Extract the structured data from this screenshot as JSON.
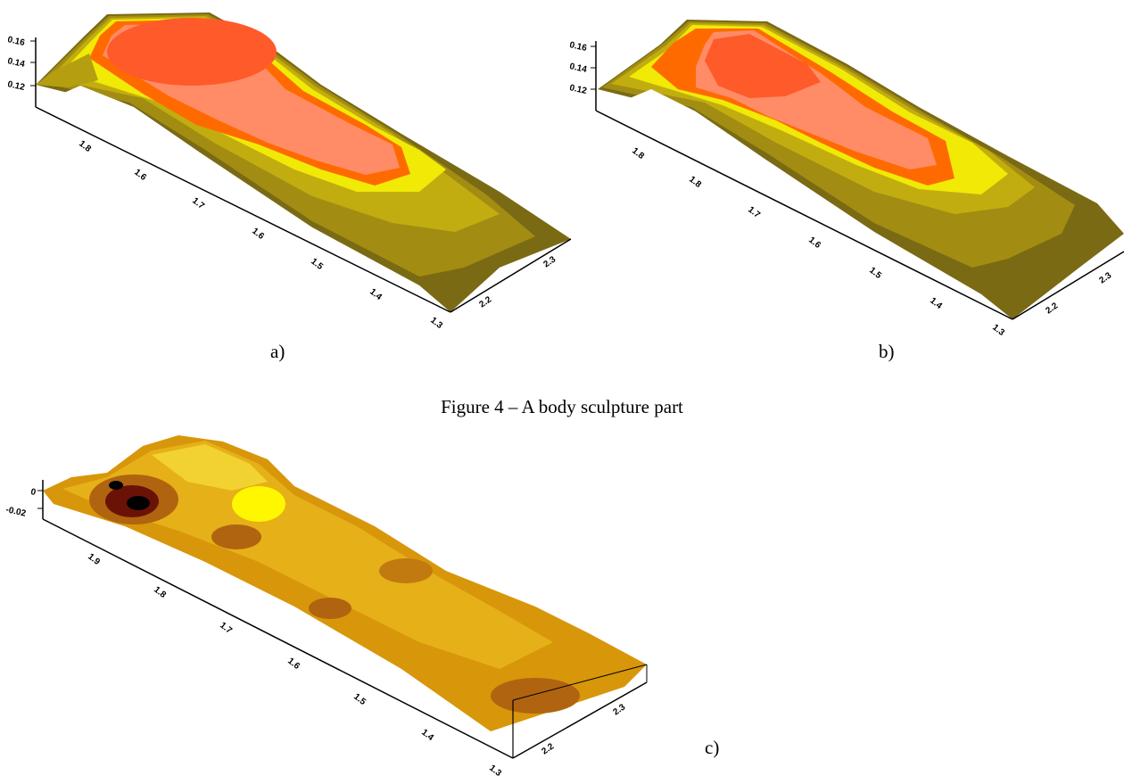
{
  "figure": {
    "caption": "Figure 4 – A body sculpture part",
    "panels": [
      {
        "label": "a)",
        "z_ticks": [
          "0.16",
          "0.14",
          "0.12"
        ],
        "x_ticks": [
          "1.8",
          "1.6",
          "1.7",
          "1.6",
          "1.5",
          "1.4",
          "1.3"
        ],
        "y_ticks": [
          "2.2",
          "2.3"
        ],
        "colors": [
          "#7a6a14",
          "#a28d12",
          "#c2ad10",
          "#f0ea06",
          "#ff6a00",
          "#ff8c66",
          "#ff5a2a"
        ]
      },
      {
        "label": "b)",
        "z_ticks": [
          "0.16",
          "0.14",
          "0.12"
        ],
        "x_ticks": [
          "1.8",
          "1.8",
          "1.7",
          "1.6",
          "1.5",
          "1.4",
          "1.3"
        ],
        "y_ticks": [
          "2.2",
          "2.3"
        ],
        "colors": [
          "#7a6a14",
          "#a28d12",
          "#c2ad10",
          "#f0ea06",
          "#ff6a00",
          "#ff8c66",
          "#ff5a2a"
        ]
      },
      {
        "label": "c)",
        "z_ticks": [
          "0",
          "-0.02"
        ],
        "x_ticks": [
          "1.9",
          "1.8",
          "1.7",
          "1.6",
          "1.5",
          "1.4",
          "1.3"
        ],
        "y_ticks": [
          "2.2",
          "2.3"
        ],
        "colors": [
          "#b06410",
          "#d8960a",
          "#e6b018",
          "#f2d230",
          "#fff700",
          "#6a1206",
          "#000000"
        ]
      }
    ]
  }
}
